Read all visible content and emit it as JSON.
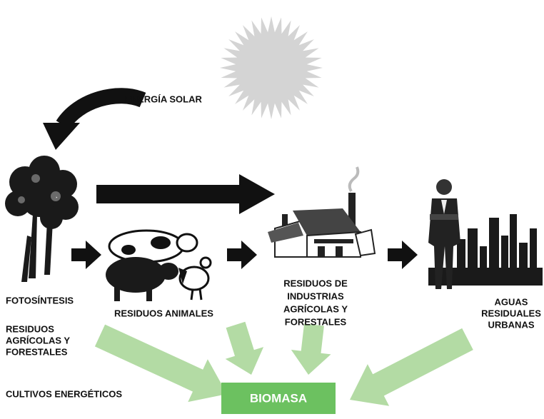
{
  "labels": {
    "solar_energy": "ENERGÍA SOLAR",
    "photosynthesis": "FOTOSÍNTESIS",
    "agri_forest_residues": [
      "RESIDUOS",
      "AGRÍCOLAS Y",
      "FORESTALES"
    ],
    "energy_crops": "CULTIVOS ENERGÉTICOS",
    "animal_residues": "RESIDUOS ANIMALES",
    "industry_residues": [
      "RESIDUOS DE",
      "INDUSTRIAS",
      "AGRÍCOLAS Y",
      "FORESTALES"
    ],
    "urban_wastewater": [
      "AGUAS",
      "RESIDUALES",
      "URBANAS"
    ],
    "biomass": "BIOMASA"
  }
}
